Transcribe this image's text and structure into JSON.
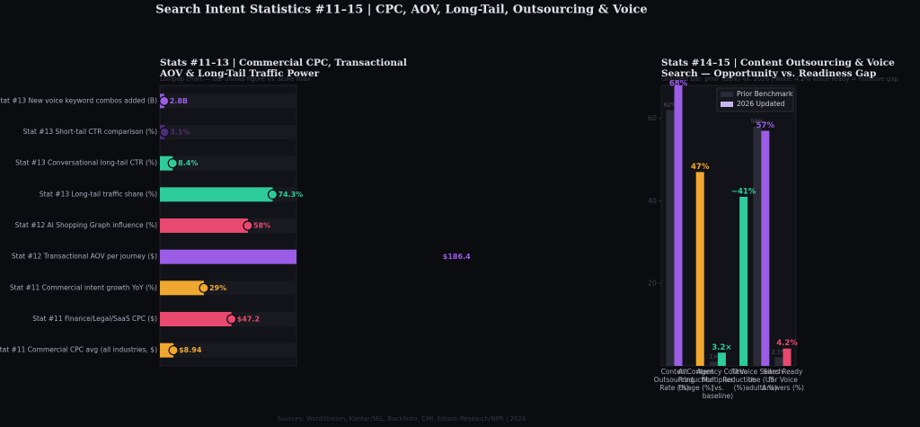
{
  "title": "Search Intent Statistics #11–15  |  CPC, AOV, Long-Tail, Outsourcing & Voice",
  "footer": "Sources: WordStream, Kantar/SEL, Backlinko, CMI, Edison Research/NPR  |  2026",
  "chart_data": [
    {
      "type": "lollipop",
      "title": "Stats #11–13  |  Commercial CPC, Transactional AOV & Long-Tail Traffic Power",
      "subtitle": "Lollipop chart — bar shows figure vs. scale max",
      "categories": [
        "Stat #13  New voice keyword combos added (B)",
        "Stat #13  Short-tail CTR comparison (%)",
        "Stat #13  Conversational long-tail CTR (%)",
        "Stat #13  Long-tail traffic share (%)",
        "Stat #12  AI Shopping Graph influence (%)",
        "Stat #12  Transactional AOV per journey ($)",
        "Stat #11  Commercial intent growth YoY (%)",
        "Stat #11  Finance/Legal/SaaS CPC ($)",
        "Stat #11  Commercial CPC avg (all industries, $)"
      ],
      "values": [
        2.8,
        3.1,
        8.4,
        74.3,
        58,
        186.4,
        29,
        47.2,
        8.94
      ],
      "value_labels": [
        "2.8B",
        "3.1%",
        "8.4%",
        "74.3%",
        "58%",
        "$186.4",
        "29%",
        "$47.2",
        "$8.94"
      ],
      "colors": [
        "#9b5de5",
        "#4b2d7a",
        "#2ecc9a",
        "#2ecc9a",
        "#e8496e",
        "#9b5de5",
        "#f0a830",
        "#e8496e",
        "#f0a830"
      ],
      "xlim": [
        0,
        90
      ]
    },
    {
      "type": "grouped-bar",
      "title": "Stats #14–15  |  Content Outsourcing & Voice Search — Opportunity vs. Readiness Gap",
      "subtitle": "Grouped bar: prior (dark) vs. 2026  |  Note: 4.2% voice-ready = massive gap",
      "categories": [
        "Content Outsourcing Rate (%)",
        "AI Content Production Usage (%)",
        "Agency Cost Multiplier (vs. baseline)",
        "Time Reduction (%)",
        "Voice Search Use (US adults %)",
        "Sites Ready for Voice Answers (%)"
      ],
      "series": [
        {
          "name": "Prior Benchmark",
          "color": "#2a2b38",
          "values": [
            62,
            null,
            1,
            null,
            58,
            2.1
          ],
          "value_labels": [
            "62%",
            null,
            "1×",
            null,
            "58%",
            "2.1%"
          ]
        },
        {
          "name": "2026 Updated",
          "colors": [
            "#9b5de5",
            "#f0a830",
            "#2ecc9a",
            "#2ecc9a",
            "#9b5de5",
            "#e8496e"
          ],
          "values": [
            68,
            47,
            3.2,
            41,
            57,
            4.2
          ],
          "value_labels": [
            "68%",
            "47%",
            "3.2×",
            "~41%",
            "57%",
            "4.2%"
          ]
        }
      ],
      "ylim": [
        0,
        68
      ],
      "yticks": [
        20,
        40,
        60
      ],
      "legend": "upper right"
    }
  ]
}
